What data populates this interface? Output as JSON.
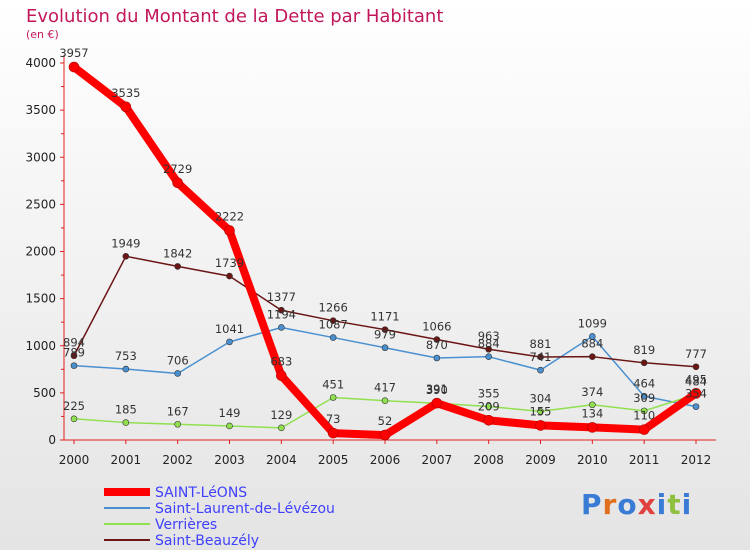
{
  "chart_data": {
    "type": "line",
    "title": "Evolution du Montant de la Dette par Habitant",
    "subtitle": "(en €)",
    "x": [
      "2000",
      "2001",
      "2002",
      "2003",
      "2004",
      "2005",
      "2006",
      "2007",
      "2008",
      "2009",
      "2010",
      "2011",
      "2012"
    ],
    "yticks": [
      "0",
      "500",
      "1000",
      "1500",
      "2000",
      "2500",
      "3000",
      "3500",
      "4000"
    ],
    "ylim": [
      0,
      4000
    ],
    "grid": false,
    "legend_position": "bottom-left",
    "series": [
      {
        "name": "SAINT-LéONS",
        "color": "#ff0000",
        "values": [
          3957,
          3535,
          2729,
          2222,
          683,
          73,
          52,
          391,
          209,
          155,
          134,
          110,
          495
        ]
      },
      {
        "name": "Saint-Laurent-de-Lévézou",
        "color": "#4a90d0",
        "values": [
          789,
          753,
          706,
          1041,
          1194,
          1087,
          979,
          870,
          884,
          741,
          1099,
          464,
          354
        ]
      },
      {
        "name": "Verrières",
        "color": "#90e050",
        "values": [
          225,
          185,
          167,
          149,
          129,
          451,
          417,
          390,
          355,
          304,
          374,
          309,
          484
        ]
      },
      {
        "name": "Saint-Beauzély",
        "color": "#6b1515",
        "values": [
          894,
          1949,
          1842,
          1739,
          1377,
          1266,
          1171,
          1066,
          963,
          881,
          884,
          819,
          777
        ]
      }
    ]
  },
  "logo": {
    "letters": [
      "P",
      "r",
      "o",
      "x",
      "i",
      "t",
      "i"
    ],
    "colors": [
      "#3a7bd5",
      "#e07020",
      "#3a7bd5",
      "#e04040",
      "#3a7bd5",
      "#90c040",
      "#3a7bd5"
    ]
  }
}
